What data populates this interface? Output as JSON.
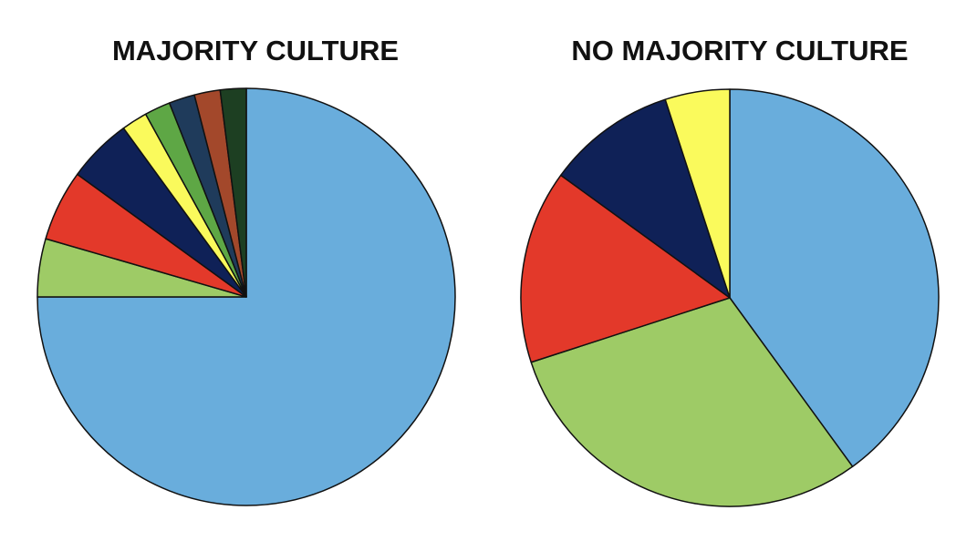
{
  "chart_data": [
    {
      "type": "pie",
      "title": "MAJORITY CULTURE",
      "values": [
        75,
        4.5,
        5.5,
        5,
        2,
        2,
        2,
        2,
        2
      ],
      "colors": [
        "#69addc",
        "#9ecb66",
        "#e3392a",
        "#0f2157",
        "#fafa5c",
        "#5ea745",
        "#1f3b5b",
        "#a3482b",
        "#1d3f22"
      ]
    },
    {
      "type": "pie",
      "title": "NO MAJORITY CULTURE",
      "values": [
        40,
        30,
        15,
        10,
        5
      ],
      "colors": [
        "#69addc",
        "#9ecb66",
        "#e3392a",
        "#0f2157",
        "#fafa5c"
      ]
    }
  ]
}
